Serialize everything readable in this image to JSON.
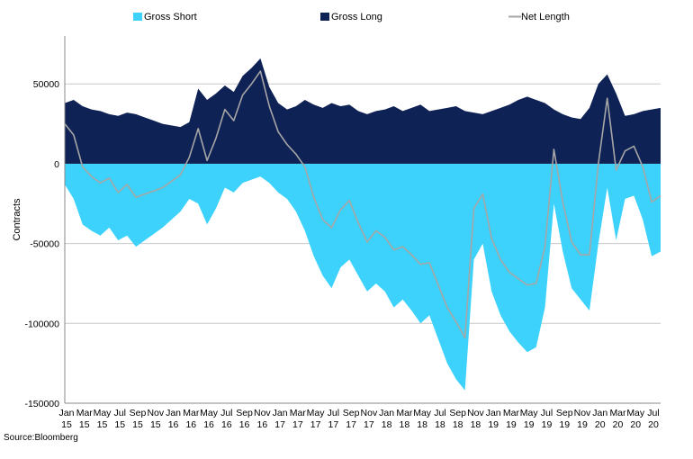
{
  "chart_data": {
    "type": "area",
    "ylabel": "Contracts",
    "ylim": [
      -150000,
      80000
    ],
    "yticks": [
      50000,
      0,
      -50000,
      -100000,
      -150000
    ],
    "grid": "horizontal",
    "legend_position": "top",
    "source": "Source:Bloomberg",
    "x_tick_labels": [
      [
        "Jan",
        "15"
      ],
      [
        "Mar",
        "15"
      ],
      [
        "May",
        "15"
      ],
      [
        "Jul",
        "15"
      ],
      [
        "Sep",
        "15"
      ],
      [
        "Nov",
        "15"
      ],
      [
        "Jan",
        "16"
      ],
      [
        "Mar",
        "16"
      ],
      [
        "May",
        "16"
      ],
      [
        "Jul",
        "16"
      ],
      [
        "Sep",
        "16"
      ],
      [
        "Nov",
        "16"
      ],
      [
        "Jan",
        "17"
      ],
      [
        "Mar",
        "17"
      ],
      [
        "May",
        "17"
      ],
      [
        "Jul",
        "17"
      ],
      [
        "Sep",
        "17"
      ],
      [
        "Nov",
        "17"
      ],
      [
        "Jan",
        "18"
      ],
      [
        "Mar",
        "18"
      ],
      [
        "May",
        "18"
      ],
      [
        "Jul",
        "18"
      ],
      [
        "Sep",
        "18"
      ],
      [
        "Nov",
        "18"
      ],
      [
        "Jan",
        "19"
      ],
      [
        "Mar",
        "19"
      ],
      [
        "May",
        "19"
      ],
      [
        "Jul",
        "19"
      ],
      [
        "Sep",
        "19"
      ],
      [
        "Nov",
        "19"
      ],
      [
        "Jan",
        "20"
      ],
      [
        "Mar",
        "20"
      ],
      [
        "May",
        "20"
      ],
      [
        "Jul",
        "20"
      ]
    ],
    "x": [
      "2015-01",
      "2015-02",
      "2015-03",
      "2015-04",
      "2015-05",
      "2015-06",
      "2015-07",
      "2015-08",
      "2015-09",
      "2015-10",
      "2015-11",
      "2015-12",
      "2016-01",
      "2016-02",
      "2016-03",
      "2016-04",
      "2016-05",
      "2016-06",
      "2016-07",
      "2016-08",
      "2016-09",
      "2016-10",
      "2016-11",
      "2016-12",
      "2017-01",
      "2017-02",
      "2017-03",
      "2017-04",
      "2017-05",
      "2017-06",
      "2017-07",
      "2017-08",
      "2017-09",
      "2017-10",
      "2017-11",
      "2017-12",
      "2018-01",
      "2018-02",
      "2018-03",
      "2018-04",
      "2018-05",
      "2018-06",
      "2018-07",
      "2018-08",
      "2018-09",
      "2018-10",
      "2018-11",
      "2018-12",
      "2019-01",
      "2019-02",
      "2019-03",
      "2019-04",
      "2019-05",
      "2019-06",
      "2019-07",
      "2019-08",
      "2019-09",
      "2019-10",
      "2019-11",
      "2019-12",
      "2020-01",
      "2020-02",
      "2020-03",
      "2020-04",
      "2020-05",
      "2020-06",
      "2020-07",
      "2020-08"
    ],
    "series": [
      {
        "name": "Gross Short",
        "kind": "area",
        "color": "#3dd2fb",
        "values": [
          -13000,
          -22000,
          -38000,
          -42000,
          -45000,
          -40000,
          -48000,
          -45000,
          -52000,
          -48000,
          -44000,
          -40000,
          -35000,
          -30000,
          -22000,
          -25000,
          -38000,
          -28000,
          -15000,
          -18000,
          -12000,
          -10000,
          -8000,
          -12000,
          -18000,
          -22000,
          -30000,
          -42000,
          -58000,
          -70000,
          -78000,
          -65000,
          -60000,
          -70000,
          -80000,
          -75000,
          -80000,
          -90000,
          -85000,
          -92000,
          -100000,
          -95000,
          -110000,
          -125000,
          -135000,
          -142000,
          -60000,
          -50000,
          -80000,
          -95000,
          -105000,
          -112000,
          -118000,
          -115000,
          -90000,
          -25000,
          -55000,
          -78000,
          -85000,
          -92000,
          -50000,
          -15000,
          -48000,
          -22000,
          -20000,
          -35000,
          -58000,
          -55000
        ]
      },
      {
        "name": "Gross Long",
        "kind": "area",
        "color": "#0f2255",
        "values": [
          38000,
          40000,
          36000,
          34000,
          33000,
          31000,
          30000,
          32000,
          31000,
          29000,
          27000,
          25000,
          24000,
          23000,
          26000,
          47000,
          40000,
          44000,
          49000,
          45000,
          55000,
          60000,
          66000,
          48000,
          38000,
          34000,
          36000,
          40000,
          37000,
          35000,
          38000,
          36000,
          37000,
          33000,
          31000,
          33000,
          34000,
          36000,
          33000,
          35000,
          37000,
          33000,
          34000,
          35000,
          36000,
          33000,
          32000,
          31000,
          33000,
          35000,
          37000,
          40000,
          42000,
          40000,
          38000,
          34000,
          31000,
          29000,
          28000,
          35000,
          50000,
          56000,
          44000,
          30000,
          31000,
          33000,
          34000,
          35000
        ]
      },
      {
        "name": "Net Length",
        "kind": "line",
        "color": "#a6a6a6",
        "values": [
          25000,
          18000,
          -2000,
          -8000,
          -12000,
          -9000,
          -18000,
          -13000,
          -21000,
          -19000,
          -17000,
          -15000,
          -11000,
          -7000,
          4000,
          22000,
          2000,
          16000,
          34000,
          27000,
          43000,
          50000,
          58000,
          36000,
          20000,
          12000,
          6000,
          -2000,
          -21000,
          -35000,
          -40000,
          -29000,
          -23000,
          -37000,
          -49000,
          -42000,
          -46000,
          -54000,
          -52000,
          -57000,
          -63000,
          -62000,
          -76000,
          -90000,
          -99000,
          -109000,
          -28000,
          -19000,
          -47000,
          -60000,
          -68000,
          -72000,
          -76000,
          -75000,
          -52000,
          9000,
          -24000,
          -49000,
          -57000,
          -57000,
          0,
          41000,
          -4000,
          8000,
          11000,
          -2000,
          -24000,
          -20000
        ]
      }
    ]
  }
}
